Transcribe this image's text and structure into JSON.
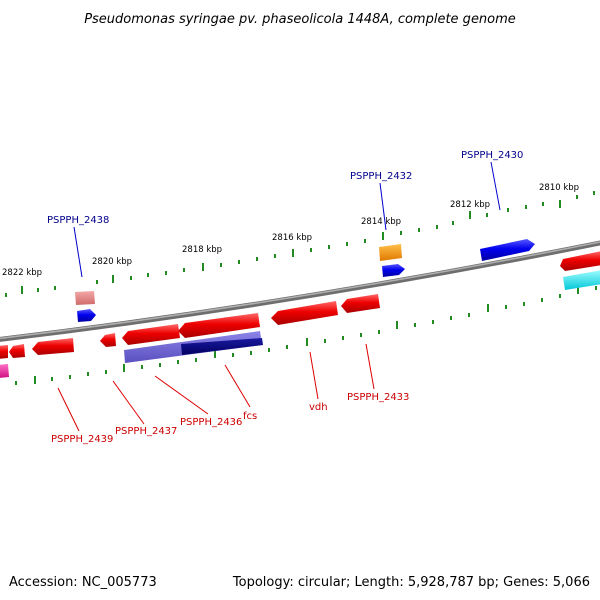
{
  "title": "Pseudomonas syringae pv. phaseolicola 1448A, complete genome",
  "footer": {
    "accession": "Accession: NC_005773",
    "summary": "Topology: circular; Length: 5,928,787 bp; Genes: 5,066"
  },
  "colors": {
    "backbone": "#808080",
    "tick": "#228b22",
    "label_forward": "#00008b",
    "label_reverse": "#cc0000",
    "leader_forward": "#0000cd",
    "leader_reverse": "#dd0000"
  },
  "scale": {
    "unit": "kbp",
    "labels": [
      "2822 kbp",
      "2820 kbp",
      "2818 kbp",
      "2816 kbp",
      "2814 kbp",
      "2812 kbp",
      "2810 kbp"
    ]
  },
  "gene_labels": {
    "forward": [
      "PSPPH_2438",
      "PSPPH_2432",
      "PSPPH_2430"
    ],
    "reverse": [
      "PSPPH_2439",
      "PSPPH_2437",
      "PSPPH_2436",
      "fcs",
      "vdh",
      "PSPPH_2433"
    ]
  }
}
